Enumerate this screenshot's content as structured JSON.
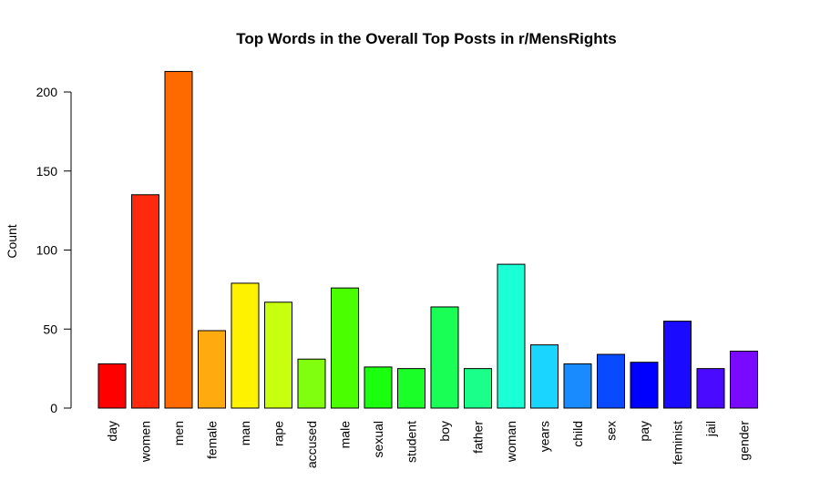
{
  "chart_data": {
    "type": "bar",
    "title": "Top Words in the Overall Top Posts in r/MensRights",
    "xlabel": "",
    "ylabel": "Count",
    "ylim": [
      0,
      213
    ],
    "yticks": [
      0,
      50,
      100,
      150,
      200
    ],
    "grid": false,
    "categories": [
      "day",
      "women",
      "men",
      "female",
      "man",
      "rape",
      "accused",
      "male",
      "sexual",
      "student",
      "boy",
      "father",
      "woman",
      "years",
      "child",
      "sex",
      "pay",
      "feminist",
      "jail",
      "gender"
    ],
    "values": [
      28,
      135,
      213,
      49,
      79,
      67,
      31,
      76,
      26,
      25,
      64,
      25,
      91,
      40,
      28,
      34,
      29,
      55,
      25,
      36
    ],
    "colors": [
      "#FF0000",
      "#FF2A0E",
      "#FF6A00",
      "#FFAA0E",
      "#FFF200",
      "#C8FF0E",
      "#80FF0E",
      "#4AFF00",
      "#1AFF0E",
      "#1AFF28",
      "#1AFF55",
      "#1AFF8A",
      "#1AFFD5",
      "#1AD5FF",
      "#1A8AFF",
      "#0A4AFF",
      "#0000FF",
      "#1A0AFF",
      "#4A0AFF",
      "#7A0AFF"
    ]
  }
}
